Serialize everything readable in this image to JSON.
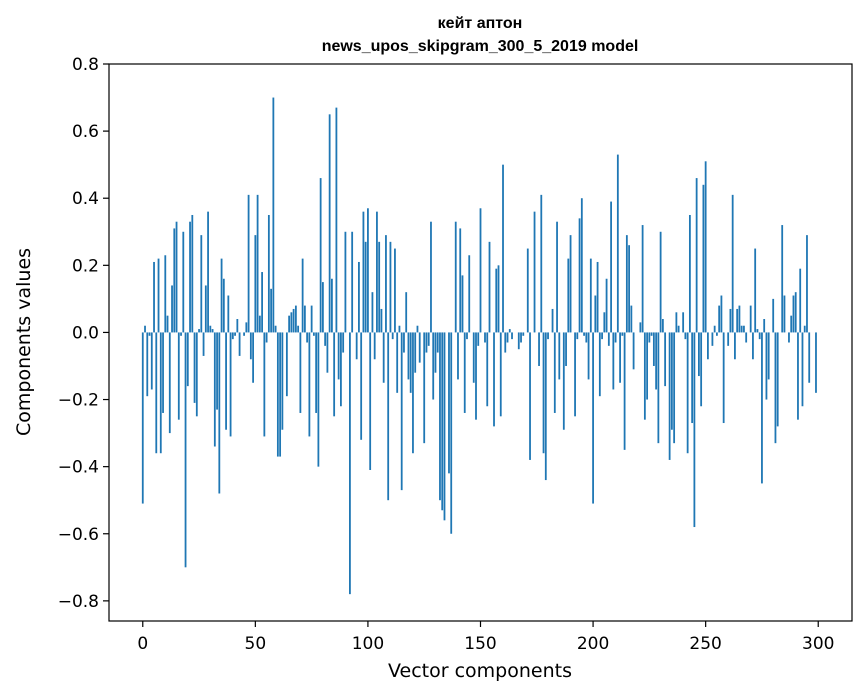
{
  "chart_data": {
    "type": "bar",
    "title": "кейт аптон",
    "subtitle": "news_upos_skipgram_300_5_2019 model",
    "xlabel": "Vector components",
    "ylabel": "Components values",
    "xlim": [
      -15,
      315
    ],
    "ylim": [
      -0.86,
      0.8
    ],
    "xticks": [
      0,
      50,
      100,
      150,
      200,
      250,
      300
    ],
    "xtick_labels": [
      "0",
      "50",
      "100",
      "150",
      "200",
      "250",
      "300"
    ],
    "yticks": [
      0.8,
      0.6,
      0.4,
      0.2,
      0.0,
      -0.2,
      -0.4,
      -0.6,
      -0.8
    ],
    "ytick_labels": [
      "0.8",
      "0.6",
      "0.4",
      "0.2",
      "0.0",
      "−0.2",
      "−0.4",
      "−0.6",
      "−0.8"
    ],
    "bar_color": "#1f77b4",
    "values": [
      -0.51,
      0.02,
      -0.19,
      -0.01,
      -0.17,
      0.21,
      -0.36,
      0.22,
      -0.36,
      -0.24,
      0.23,
      0.05,
      -0.3,
      0.14,
      0.31,
      0.33,
      -0.26,
      -0.01,
      0.3,
      -0.7,
      -0.16,
      0.33,
      0.35,
      -0.21,
      -0.25,
      0.01,
      0.29,
      -0.07,
      0.14,
      0.36,
      0.02,
      0.01,
      -0.34,
      -0.23,
      -0.48,
      0.22,
      0.16,
      -0.29,
      0.11,
      -0.31,
      -0.02,
      -0.01,
      0.04,
      -0.07,
      0.0,
      -0.01,
      0.03,
      0.41,
      -0.08,
      -0.15,
      0.29,
      0.41,
      0.05,
      0.18,
      -0.31,
      -0.03,
      0.35,
      0.13,
      0.7,
      0.02,
      -0.37,
      -0.37,
      -0.29,
      0.0,
      -0.19,
      0.05,
      0.06,
      0.07,
      0.08,
      0.02,
      -0.24,
      0.22,
      0.08,
      -0.03,
      -0.31,
      0.08,
      -0.01,
      -0.24,
      -0.4,
      0.46,
      0.15,
      -0.04,
      -0.12,
      0.65,
      0.16,
      -0.25,
      0.67,
      -0.14,
      -0.22,
      -0.06,
      0.3,
      0.0,
      -0.78,
      0.3,
      0.0,
      -0.08,
      0.21,
      -0.32,
      0.36,
      0.27,
      0.37,
      -0.41,
      0.12,
      -0.08,
      0.36,
      0.27,
      0.07,
      -0.15,
      0.29,
      -0.5,
      0.27,
      -0.02,
      0.25,
      -0.18,
      0.02,
      -0.47,
      -0.06,
      0.12,
      -0.14,
      -0.18,
      -0.36,
      -0.12,
      0.02,
      -0.09,
      0.0,
      -0.33,
      -0.06,
      -0.04,
      0.33,
      -0.2,
      -0.12,
      -0.06,
      -0.5,
      -0.53,
      -0.56,
      0.0,
      -0.42,
      -0.6,
      0.0,
      0.33,
      -0.14,
      0.31,
      0.17,
      -0.24,
      -0.02,
      0.23,
      0.0,
      -0.15,
      -0.26,
      -0.04,
      0.37,
      0.0,
      -0.03,
      -0.22,
      0.27,
      0.0,
      -0.28,
      0.19,
      0.2,
      -0.25,
      0.5,
      -0.06,
      -0.03,
      0.01,
      -0.02,
      0.0,
      0.0,
      -0.05,
      -0.03,
      -0.01,
      0.0,
      0.25,
      -0.38,
      0.0,
      0.36,
      0.0,
      -0.1,
      0.41,
      -0.36,
      -0.44,
      -0.02,
      0.0,
      0.07,
      -0.24,
      0.33,
      -0.14,
      0.0,
      -0.29,
      -0.1,
      0.22,
      0.29,
      0.0,
      -0.25,
      -0.02,
      0.34,
      0.4,
      -0.01,
      -0.03,
      -0.14,
      0.22,
      -0.51,
      0.11,
      0.21,
      -0.19,
      -0.02,
      0.06,
      0.16,
      -0.04,
      0.39,
      -0.17,
      -0.03,
      0.53,
      -0.15,
      -0.01,
      -0.35,
      0.29,
      0.26,
      0.08,
      -0.11,
      0.0,
      0.0,
      0.03,
      0.32,
      -0.26,
      -0.2,
      -0.03,
      -0.01,
      -0.1,
      -0.17,
      -0.33,
      0.3,
      0.04,
      -0.16,
      0.0,
      -0.38,
      -0.29,
      -0.33,
      0.06,
      0.02,
      0.0,
      0.06,
      -0.02,
      -0.36,
      0.35,
      -0.27,
      -0.58,
      0.46,
      -0.13,
      -0.22,
      0.44,
      0.51,
      -0.08,
      0.0,
      -0.04,
      0.02,
      -0.01,
      0.08,
      0.11,
      -0.27,
      0.0,
      -0.04,
      0.07,
      0.41,
      -0.08,
      0.07,
      0.08,
      0.02,
      0.02,
      -0.03,
      0.0,
      0.08,
      -0.08,
      0.25,
      0.01,
      -0.02,
      -0.45,
      0.04,
      -0.2,
      -0.14,
      0.0,
      0.1,
      -0.33,
      -0.28,
      0.0,
      0.32,
      0.11,
      0.0,
      -0.03,
      0.05,
      0.11,
      0.12,
      -0.26,
      0.19,
      -0.22,
      0.02,
      0.29,
      -0.15,
      0.0,
      0.0,
      -0.18
    ]
  }
}
